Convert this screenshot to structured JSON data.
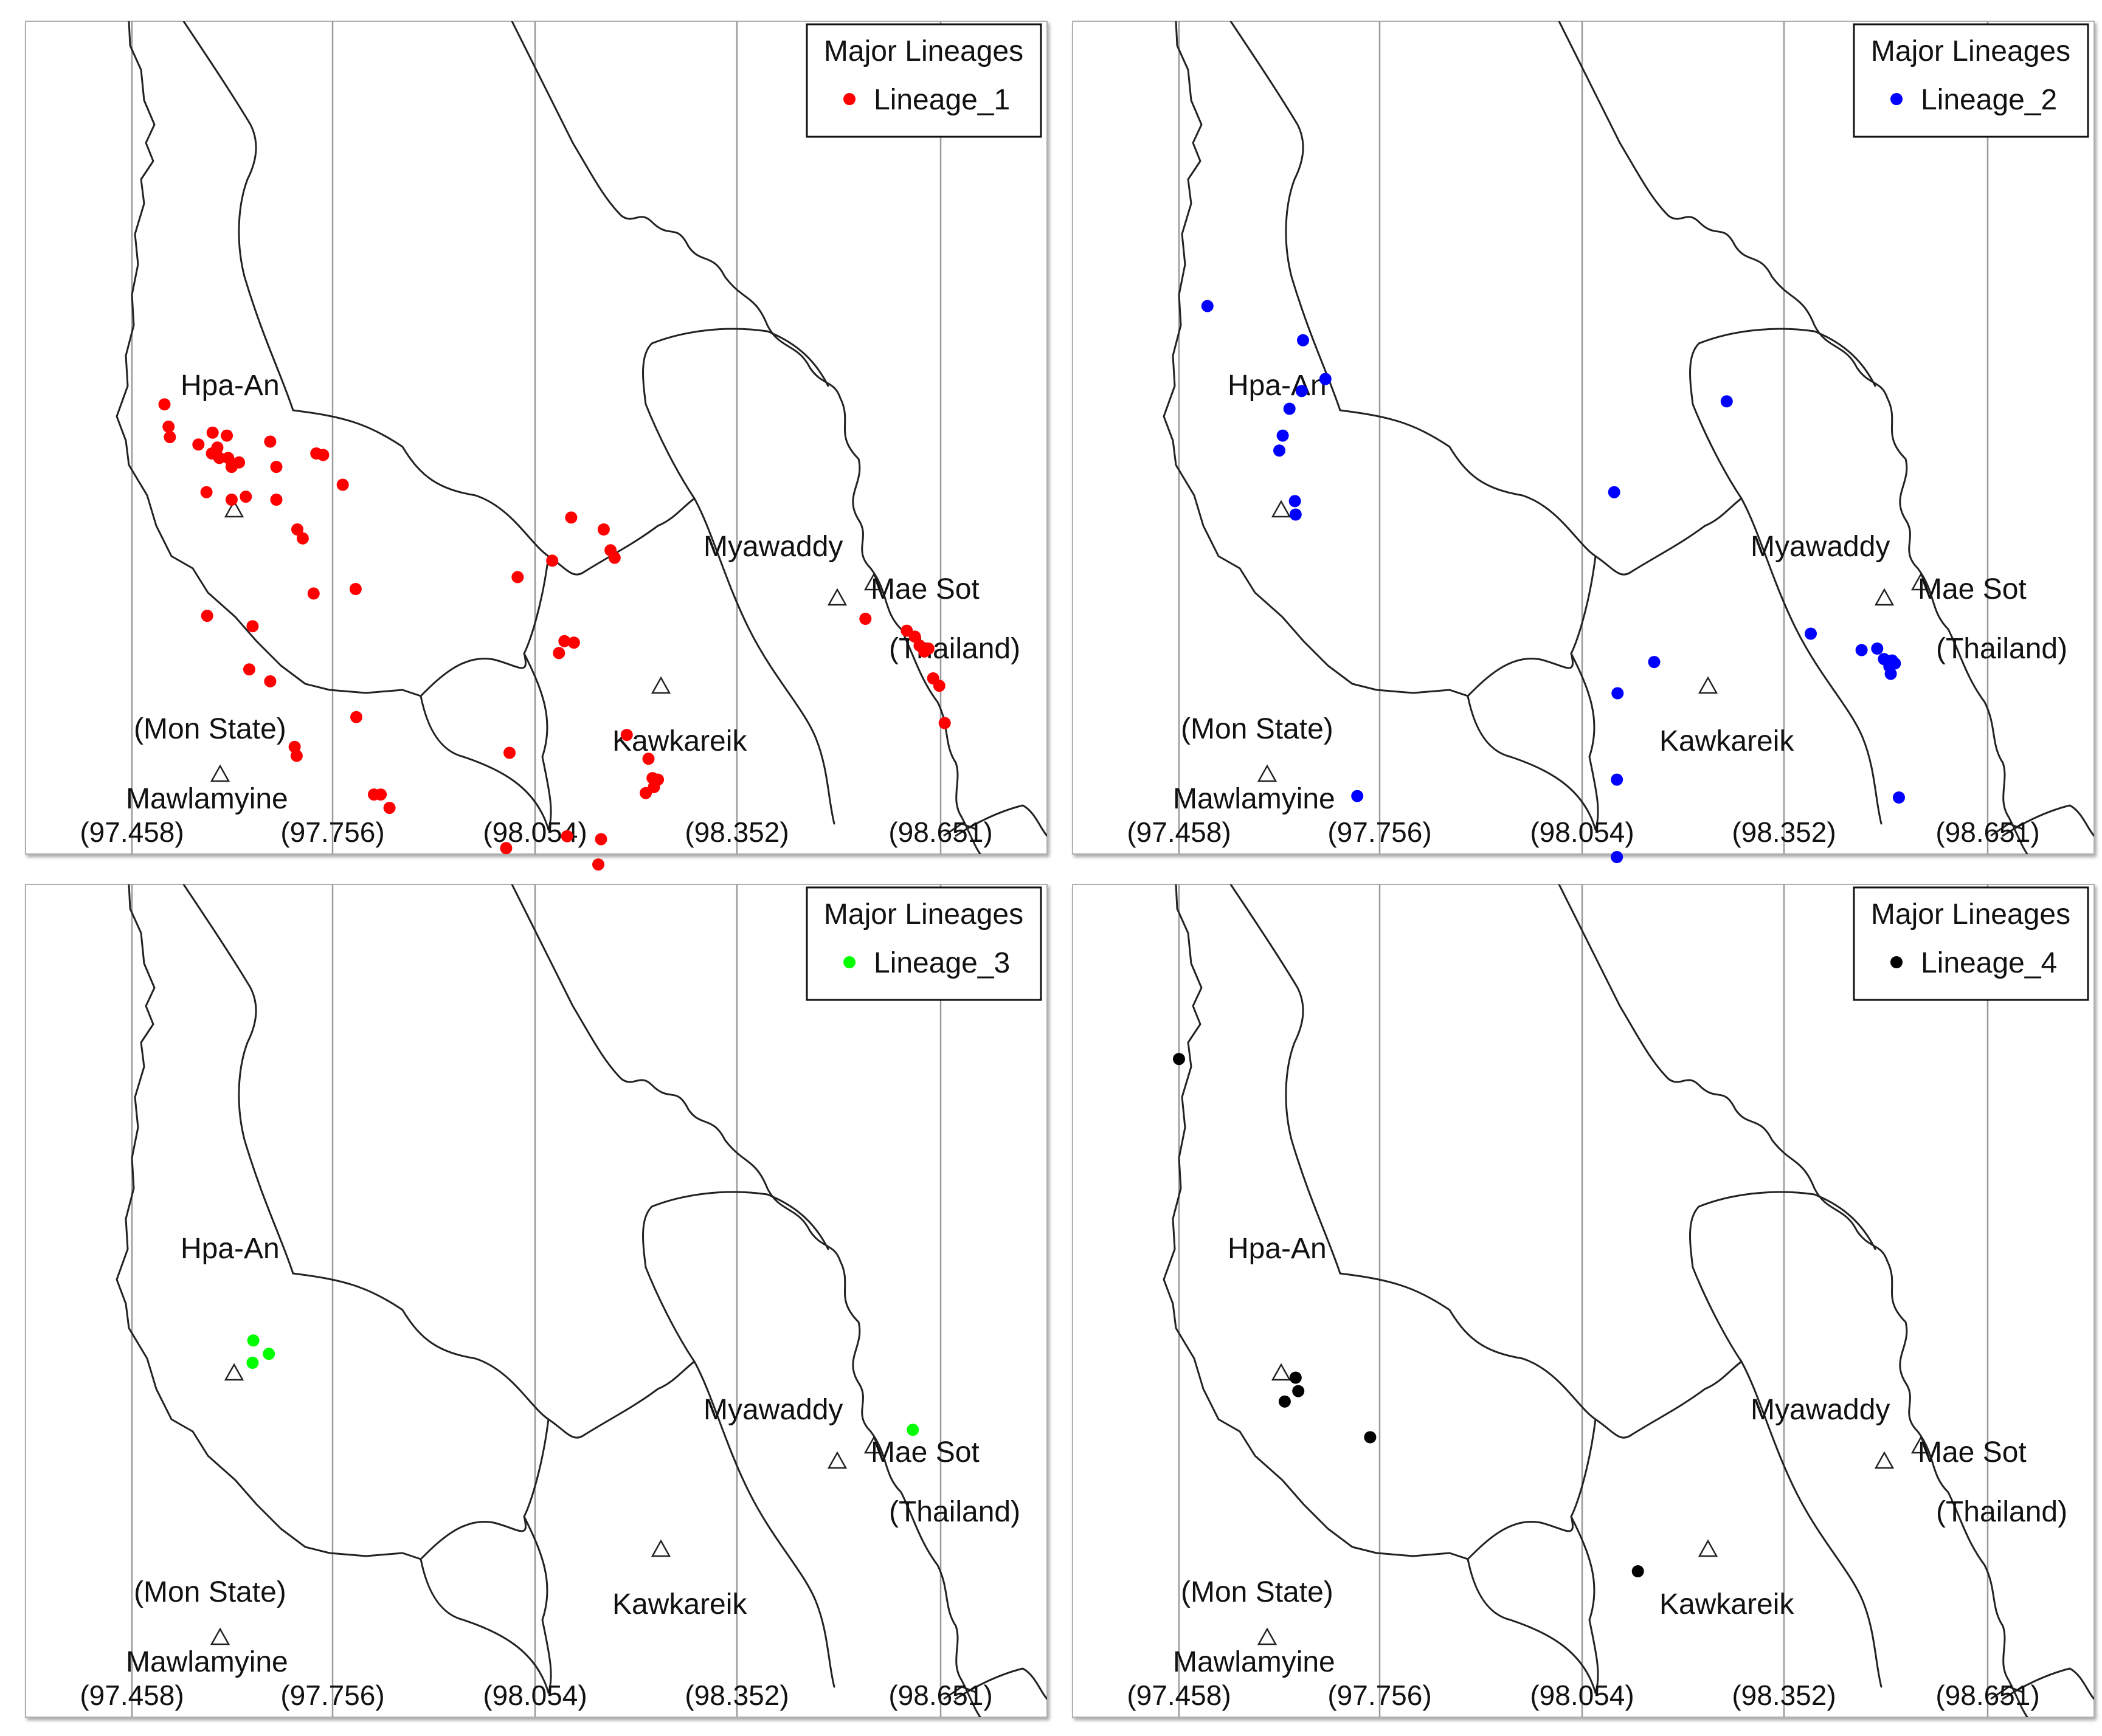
{
  "figure": {
    "longitude_ticks": [
      "(97.458)",
      "(97.756)",
      "(98.054)",
      "(98.352)",
      "(98.651)"
    ],
    "place_labels": {
      "hpa_an": "Hpa-An",
      "myawaddy": "Myawaddy",
      "mae_sot": "Mae Sot",
      "thailand": "(Thailand)",
      "mon_state": "(Mon State)",
      "mawlamyine": "Mawlamyine",
      "kawkareik": "Kawkareik"
    },
    "panels": [
      {
        "legend_title": "Major Lineages",
        "legend_entry": "Lineage_1",
        "color": "#ff0000",
        "points": [
          [
            97.506,
            16.984
          ],
          [
            97.512,
            16.969
          ],
          [
            97.514,
            16.962
          ],
          [
            97.556,
            16.957
          ],
          [
            97.576,
            16.951
          ],
          [
            97.577,
            16.965
          ],
          [
            97.584,
            16.955
          ],
          [
            97.587,
            16.948
          ],
          [
            97.598,
            16.963
          ],
          [
            97.6,
            16.948
          ],
          [
            97.605,
            16.942
          ],
          [
            97.616,
            16.945
          ],
          [
            97.626,
            16.922
          ],
          [
            97.662,
            16.959
          ],
          [
            97.671,
            16.942
          ],
          [
            97.671,
            16.92
          ],
          [
            97.568,
            16.925
          ],
          [
            97.605,
            16.92
          ],
          [
            97.702,
            16.9
          ],
          [
            97.71,
            16.894
          ],
          [
            97.73,
            16.951
          ],
          [
            97.74,
            16.95
          ],
          [
            97.769,
            16.93
          ],
          [
            97.569,
            16.842
          ],
          [
            97.636,
            16.835
          ],
          [
            97.631,
            16.806
          ],
          [
            97.662,
            16.798
          ],
          [
            97.698,
            16.754
          ],
          [
            97.701,
            16.748
          ],
          [
            97.726,
            16.857
          ],
          [
            97.788,
            16.86
          ],
          [
            97.789,
            16.774
          ],
          [
            97.815,
            16.722
          ],
          [
            97.825,
            16.722
          ],
          [
            97.838,
            16.713
          ],
          [
            98.027,
            16.868
          ],
          [
            98.015,
            16.75
          ],
          [
            98.106,
            16.908
          ],
          [
            98.154,
            16.9
          ],
          [
            98.164,
            16.886
          ],
          [
            98.17,
            16.881
          ],
          [
            98.078,
            16.879
          ],
          [
            98.096,
            16.825
          ],
          [
            98.11,
            16.824
          ],
          [
            98.088,
            16.817
          ],
          [
            98.15,
            16.692
          ],
          [
            98.188,
            16.762
          ],
          [
            98.22,
            16.746
          ],
          [
            98.226,
            16.733
          ],
          [
            98.228,
            16.727
          ],
          [
            98.234,
            16.732
          ],
          [
            98.216,
            16.723
          ],
          [
            98.1,
            16.694
          ],
          [
            98.146,
            16.675
          ],
          [
            98.01,
            16.686
          ],
          [
            98.54,
            16.84
          ],
          [
            98.601,
            16.832
          ],
          [
            98.613,
            16.828
          ],
          [
            98.62,
            16.822
          ],
          [
            98.627,
            16.818
          ],
          [
            98.633,
            16.82
          ],
          [
            98.64,
            16.8
          ],
          [
            98.649,
            16.795
          ],
          [
            98.657,
            16.77
          ]
        ]
      },
      {
        "legend_title": "Major Lineages",
        "legend_entry": "Lineage_2",
        "color": "#0000ff",
        "points": [
          [
            97.5,
            17.05
          ],
          [
            97.641,
            17.027
          ],
          [
            97.674,
            17.001
          ],
          [
            97.639,
            16.993
          ],
          [
            97.621,
            16.981
          ],
          [
            97.611,
            16.963
          ],
          [
            97.606,
            16.953
          ],
          [
            97.629,
            16.919
          ],
          [
            97.63,
            16.91
          ],
          [
            97.721,
            16.721
          ],
          [
            98.266,
            16.986
          ],
          [
            98.1,
            16.925
          ],
          [
            98.159,
            16.811
          ],
          [
            98.105,
            16.79
          ],
          [
            98.104,
            16.732
          ],
          [
            98.104,
            16.68
          ],
          [
            98.39,
            16.83
          ],
          [
            98.465,
            16.819
          ],
          [
            98.488,
            16.82
          ],
          [
            98.498,
            16.813
          ],
          [
            98.506,
            16.808
          ],
          [
            98.51,
            16.812
          ],
          [
            98.514,
            16.81
          ],
          [
            98.508,
            16.803
          ],
          [
            98.52,
            16.72
          ]
        ]
      },
      {
        "legend_title": "Major Lineages",
        "legend_entry": "Lineage_3",
        "color": "#00ff00",
        "points": [
          [
            97.637,
            16.935
          ],
          [
            97.636,
            16.92
          ],
          [
            97.66,
            16.926
          ],
          [
            98.61,
            16.875
          ]
        ]
      },
      {
        "legend_title": "Major Lineages",
        "legend_entry": "Lineage_4",
        "color": "#000000",
        "points": [
          [
            97.458,
            17.124
          ],
          [
            97.63,
            16.91
          ],
          [
            97.634,
            16.901
          ],
          [
            97.614,
            16.894
          ],
          [
            97.74,
            16.87
          ],
          [
            98.135,
            16.78
          ]
        ]
      }
    ]
  }
}
